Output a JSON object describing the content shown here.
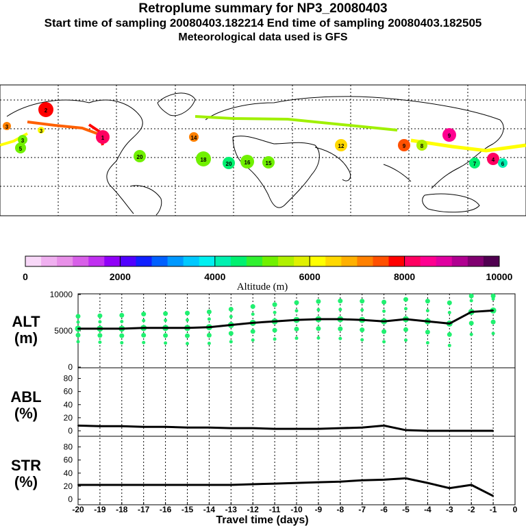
{
  "header": {
    "title": "Retroplume summary for NP3_20080403",
    "line2": "Start time of sampling 20080403.182214     End time of sampling 20080403.182505",
    "line3": "Meteorological data used is GFS"
  },
  "colorbar": {
    "label": "Altitude (m)",
    "tick_labels": [
      "0",
      "2000",
      "4000",
      "6000",
      "8000",
      "10000"
    ],
    "colors": [
      "#f8d8f8",
      "#f0b0f0",
      "#e890e8",
      "#d860e8",
      "#c030f0",
      "#9000f8",
      "#5000ff",
      "#1020ff",
      "#0060ff",
      "#0098ff",
      "#00c8ff",
      "#00f0f0",
      "#00f0b0",
      "#00f070",
      "#30f030",
      "#70f000",
      "#b0f000",
      "#e0f000",
      "#ffff00",
      "#ffd800",
      "#ffb000",
      "#ff8000",
      "#ff5000",
      "#ff0000",
      "#ff0060",
      "#ff0090",
      "#e000a0",
      "#b00090",
      "#800070",
      "#500050"
    ]
  },
  "map_labels": {
    "points": [
      {
        "label": "2",
        "alt": 7800
      },
      {
        "label": "3",
        "alt": 7000
      },
      {
        "label": "3",
        "alt": 5200
      },
      {
        "label": "5",
        "alt": 5000
      },
      {
        "label": "3",
        "alt": 6200
      },
      {
        "label": "1",
        "alt": 8000
      },
      {
        "label": "14",
        "alt": 7000
      },
      {
        "label": "20",
        "alt": 5300
      },
      {
        "label": "18",
        "alt": 5200
      },
      {
        "label": "20",
        "alt": 4500
      },
      {
        "label": "16",
        "alt": 5300
      },
      {
        "label": "15",
        "alt": 5200
      },
      {
        "label": "12",
        "alt": 6400
      },
      {
        "label": "9",
        "alt": 8500
      },
      {
        "label": "9",
        "alt": 7500
      },
      {
        "label": "4",
        "alt": 8200
      },
      {
        "label": "6",
        "alt": 4300
      },
      {
        "label": "8",
        "alt": 5500
      },
      {
        "label": "7",
        "alt": 4500
      }
    ]
  },
  "chart_data": [
    {
      "type": "line",
      "name": "ALT",
      "ylabel": "ALT\n(m)",
      "ylabel_lines": [
        "ALT",
        "(m)"
      ],
      "ylim": [
        0,
        10000
      ],
      "yticks": [
        "10000",
        "5000",
        "0"
      ],
      "x": [
        -20,
        -19,
        -18,
        -17,
        -16,
        -15,
        -14,
        -13,
        -12,
        -11,
        -10,
        -9,
        -8,
        -7,
        -6,
        -5,
        -4,
        -3,
        -2,
        -1
      ],
      "values": [
        5300,
        5300,
        5300,
        5400,
        5400,
        5400,
        5500,
        5800,
        6100,
        6300,
        6500,
        6600,
        6600,
        6500,
        6300,
        6600,
        6300,
        6000,
        7600,
        7800
      ]
    },
    {
      "type": "line",
      "name": "ABL",
      "ylabel": "ABL\n(%)",
      "ylabel_lines": [
        "ABL",
        "(%)"
      ],
      "ylim": [
        0,
        90
      ],
      "yticks": [
        "80",
        "60",
        "40",
        "20",
        "0"
      ],
      "x": [
        -20,
        -19,
        -18,
        -17,
        -16,
        -15,
        -14,
        -13,
        -12,
        -11,
        -10,
        -9,
        -8,
        -7,
        -6,
        -5,
        -4,
        -3,
        -2,
        -1
      ],
      "values": [
        8,
        7,
        7,
        6,
        6,
        5,
        5,
        4,
        4,
        3,
        3,
        3,
        4,
        5,
        8,
        1,
        0,
        0,
        0,
        0
      ]
    },
    {
      "type": "line",
      "name": "STR",
      "ylabel": "STR\n(%)",
      "ylabel_lines": [
        "STR",
        "(%)"
      ],
      "ylim": [
        0,
        90
      ],
      "yticks": [
        "80",
        "60",
        "40",
        "20",
        "0"
      ],
      "x": [
        -20,
        -19,
        -18,
        -17,
        -16,
        -15,
        -14,
        -13,
        -12,
        -11,
        -10,
        -9,
        -8,
        -7,
        -6,
        -5,
        -4,
        -3,
        -2,
        -1
      ],
      "values": [
        22,
        22,
        22,
        22,
        22,
        22,
        22,
        22,
        23,
        24,
        25,
        26,
        27,
        29,
        30,
        32,
        25,
        17,
        22,
        5
      ]
    }
  ],
  "x_axis": {
    "label": "Travel time (days)",
    "tick_labels": [
      "-20",
      "-19",
      "-18",
      "-17",
      "-16",
      "-15",
      "-14",
      "-13",
      "-12",
      "-11",
      "-10",
      "-9",
      "-8",
      "-7",
      "-6",
      "-5",
      "-4",
      "-3",
      "-2",
      "-1",
      "0"
    ]
  }
}
